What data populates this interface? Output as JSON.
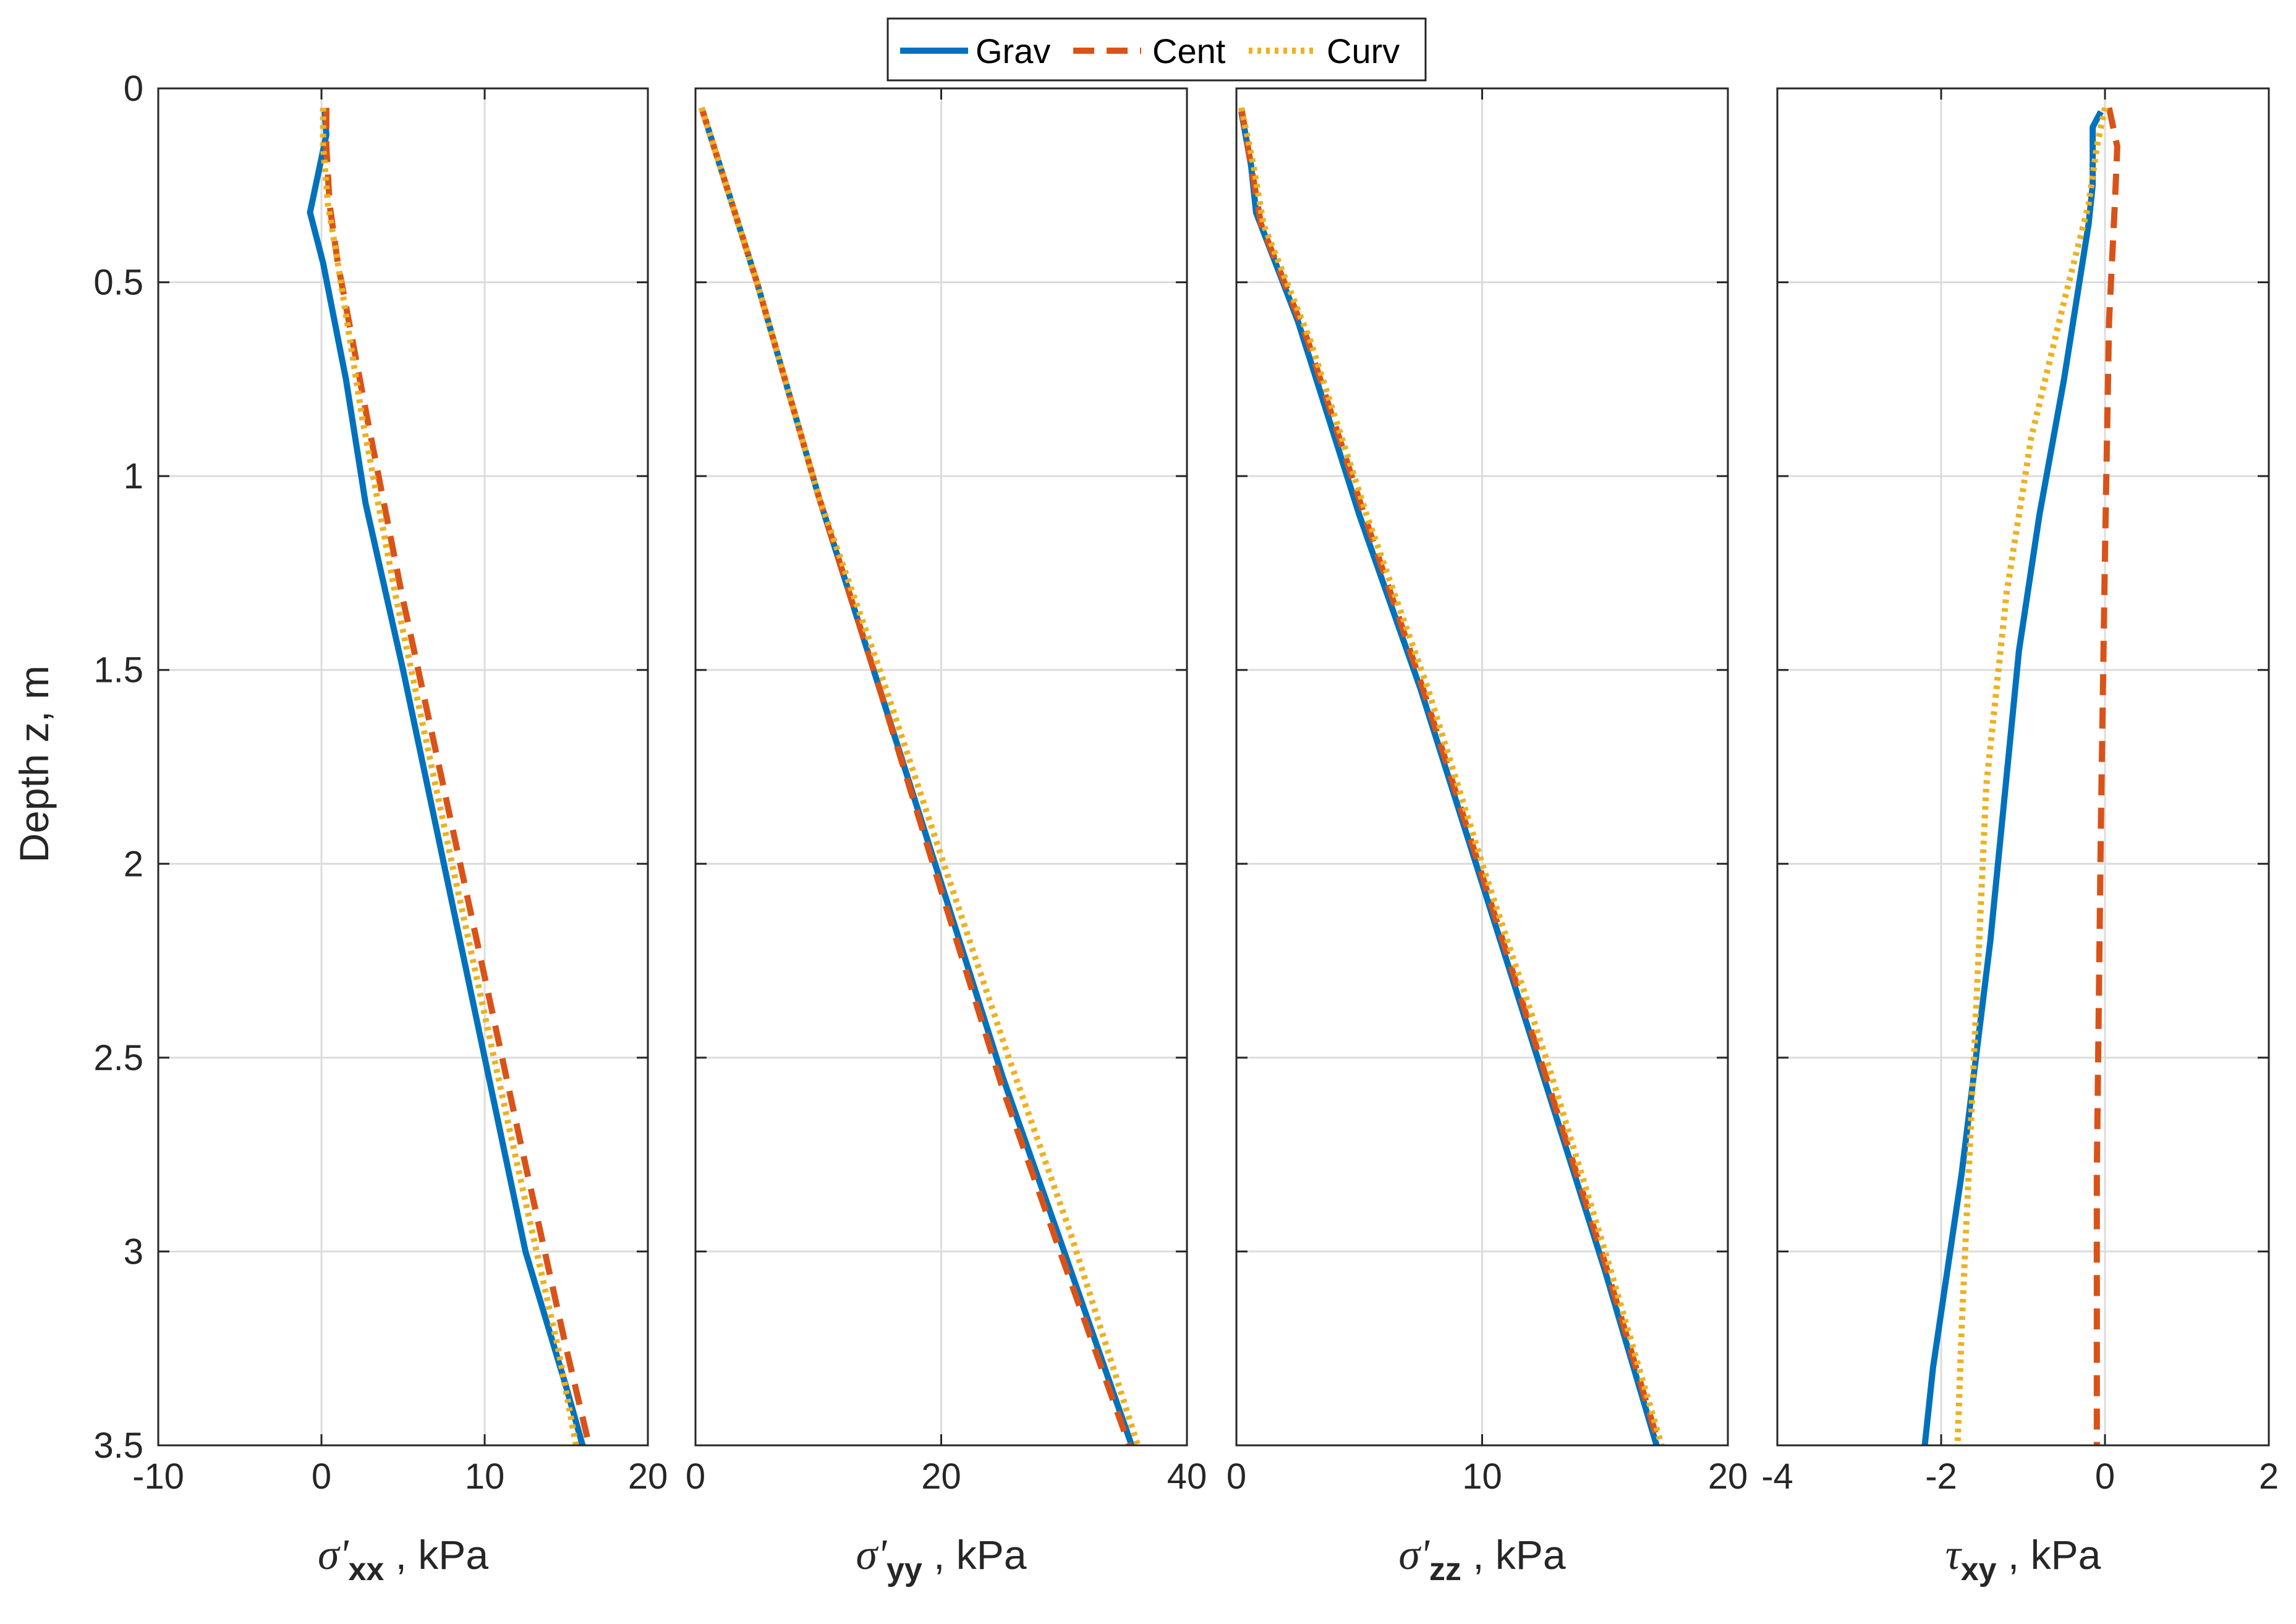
{
  "chart_data": {
    "type": "line",
    "legend": {
      "placement": "top-center",
      "entries": [
        {
          "name": "Grav",
          "color": "#0072BD",
          "style": "solid"
        },
        {
          "name": "Cent",
          "color": "#D95319",
          "style": "dashed"
        },
        {
          "name": "Curv",
          "color": "#EDB120",
          "style": "dotted"
        }
      ]
    },
    "ylabel": "Depth z, m",
    "ylim": [
      0,
      3.5
    ],
    "y_reversed": true,
    "yticks": [
      "0",
      "0.5",
      "1",
      "1.5",
      "2",
      "2.5",
      "3",
      "3.5"
    ],
    "ytick_values": [
      0,
      0.5,
      1,
      1.5,
      2,
      2.5,
      3,
      3.5
    ],
    "grid": true,
    "panels": [
      {
        "symbol": "σ'",
        "subscript": "xx",
        "unit": ", kPa",
        "xlim": [
          -10,
          20
        ],
        "xtick_values": [
          -10,
          0,
          10,
          20
        ],
        "xticks": [
          "-10",
          "0",
          "10",
          "20"
        ],
        "series": [
          {
            "name": "Grav",
            "x": [
              0.2,
              0.3,
              -0.7,
              0.1,
              1.5,
              2.7,
              5.0,
              7.5,
              10.0,
              12.5,
              15.0,
              16.0
            ],
            "y": [
              0.06,
              0.12,
              0.32,
              0.45,
              0.75,
              1.07,
              1.5,
              2.0,
              2.5,
              3.0,
              3.35,
              3.5
            ]
          },
          {
            "name": "Cent",
            "x": [
              0.3,
              0.3,
              0.5,
              1.0,
              2.8,
              4.9,
              8.5,
              12.1,
              15.0,
              16.4
            ],
            "y": [
              0.05,
              0.15,
              0.3,
              0.45,
              0.85,
              1.3,
              2.0,
              2.7,
              3.25,
              3.5
            ]
          },
          {
            "name": "Curv",
            "x": [
              0.1,
              0.1,
              0.4,
              1.0,
              2.5,
              4.5,
              8.0,
              11.6,
              14.5,
              15.6
            ],
            "y": [
              0.05,
              0.15,
              0.3,
              0.45,
              0.85,
              1.3,
              2.0,
              2.7,
              3.25,
              3.5
            ]
          }
        ]
      },
      {
        "symbol": "σ'",
        "subscript": "yy",
        "unit": ", kPa",
        "xlim": [
          0,
          40
        ],
        "xtick_values": [
          0,
          20,
          40
        ],
        "xticks": [
          "0",
          "20",
          "40"
        ],
        "series": [
          {
            "name": "Grav",
            "x": [
              0.5,
              5.0,
              10.0,
              15.0,
              20.0,
              25.0,
              30.0,
              35.5
            ],
            "y": [
              0.05,
              0.5,
              1.05,
              1.55,
              2.05,
              2.55,
              3.0,
              3.5
            ]
          },
          {
            "name": "Cent",
            "x": [
              0.5,
              5.0,
              10.0,
              15.0,
              20.0,
              25.0,
              30.0,
              35.3
            ],
            "y": [
              0.05,
              0.5,
              1.05,
              1.55,
              2.07,
              2.58,
              3.03,
              3.5
            ]
          },
          {
            "name": "Curv",
            "x": [
              0.5,
              5.0,
              10.0,
              15.0,
              20.0,
              25.5,
              30.5,
              36.0
            ],
            "y": [
              0.05,
              0.5,
              1.05,
              1.5,
              1.98,
              2.5,
              2.95,
              3.5
            ]
          }
        ]
      },
      {
        "symbol": "σ'",
        "subscript": "zz",
        "unit": ", kPa",
        "xlim": [
          0,
          20
        ],
        "xtick_values": [
          0,
          10,
          20
        ],
        "xticks": [
          "0",
          "10",
          "20"
        ],
        "series": [
          {
            "name": "Grav",
            "x": [
              0.2,
              0.6,
              0.8,
              2.5,
              5.0,
              7.5,
              10.0,
              12.5,
              15.0,
              17.1
            ],
            "y": [
              0.06,
              0.2,
              0.32,
              0.6,
              1.1,
              1.55,
              2.05,
              2.55,
              3.05,
              3.5
            ]
          },
          {
            "name": "Cent",
            "x": [
              0.2,
              0.6,
              1.0,
              2.9,
              5.2,
              7.6,
              10.0,
              12.5,
              15.0,
              17.2
            ],
            "y": [
              0.05,
              0.2,
              0.35,
              0.65,
              1.1,
              1.55,
              2.03,
              2.53,
              3.03,
              3.5
            ]
          },
          {
            "name": "Curv",
            "x": [
              0.2,
              0.7,
              1.1,
              3.0,
              5.3,
              7.8,
              10.1,
              12.7,
              15.1,
              17.3
            ],
            "y": [
              0.05,
              0.2,
              0.35,
              0.65,
              1.1,
              1.55,
              2.02,
              2.52,
              3.02,
              3.5
            ]
          }
        ]
      },
      {
        "symbol": "τ",
        "subscript": "xy",
        "unit": ", kPa",
        "xlim": [
          -4,
          2
        ],
        "xtick_values": [
          -4,
          -2,
          0,
          2
        ],
        "xticks": [
          "-4",
          "-2",
          "0",
          "2"
        ],
        "series": [
          {
            "name": "Grav",
            "x": [
              -0.05,
              -0.15,
              -0.15,
              -0.2,
              -0.5,
              -0.8,
              -1.05,
              -1.4,
              -1.75,
              -2.1,
              -2.2
            ],
            "y": [
              0.06,
              0.1,
              0.25,
              0.35,
              0.75,
              1.1,
              1.45,
              2.2,
              2.8,
              3.3,
              3.5
            ]
          },
          {
            "name": "Cent",
            "x": [
              0.05,
              0.15,
              0.12,
              0.05,
              0.0,
              -0.05,
              -0.1,
              -0.1
            ],
            "y": [
              0.05,
              0.15,
              0.3,
              0.6,
              1.2,
              1.9,
              2.8,
              3.5
            ]
          },
          {
            "name": "Curv",
            "x": [
              0.0,
              -0.1,
              -0.2,
              -0.5,
              -0.9,
              -1.2,
              -1.45,
              -1.6,
              -1.75,
              -1.8
            ],
            "y": [
              0.05,
              0.15,
              0.3,
              0.55,
              0.9,
              1.3,
              1.8,
              2.5,
              3.2,
              3.5
            ]
          }
        ]
      }
    ]
  }
}
